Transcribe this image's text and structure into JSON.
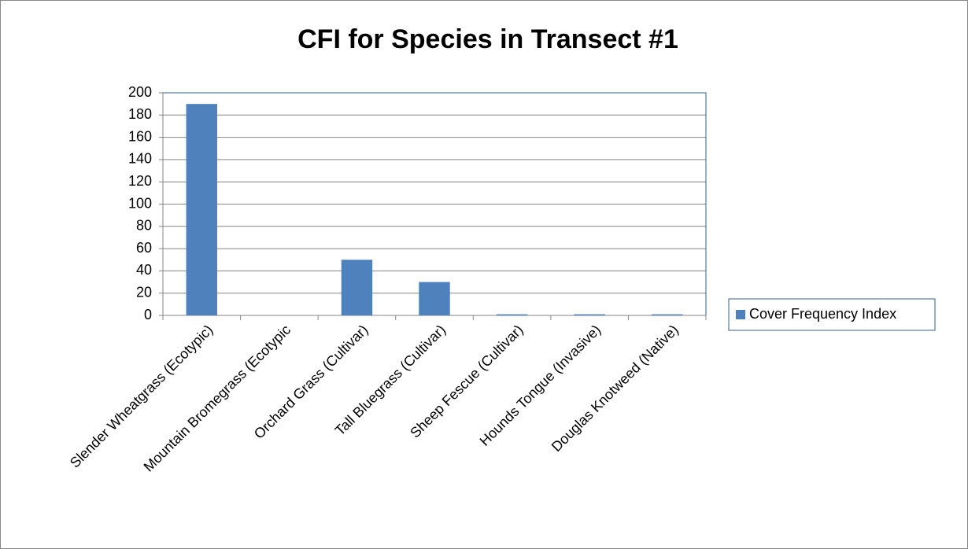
{
  "chart_data": {
    "type": "bar",
    "title": "CFI for Species in Transect #1",
    "categories": [
      "Slender Wheatgrass (Ecotypic)",
      "Mountain Bromegrass (Ecotypic",
      "Orchard Grass (Cultivar)",
      "Tall Bluegrass (Cultivar)",
      "Sheep Fescue (Cultivar)",
      "Hounds Tongue (Invasive)",
      "Douglas Knotweed (Native)"
    ],
    "series": [
      {
        "name": "Cover Frequency Index",
        "color": "#4f81bd",
        "values": [
          190,
          0,
          50,
          30,
          1,
          1,
          1
        ]
      }
    ],
    "ylim": [
      0,
      200
    ],
    "yticks": [
      0,
      20,
      40,
      60,
      80,
      100,
      120,
      140,
      160,
      180,
      200
    ],
    "grid": true,
    "legend": "right"
  }
}
